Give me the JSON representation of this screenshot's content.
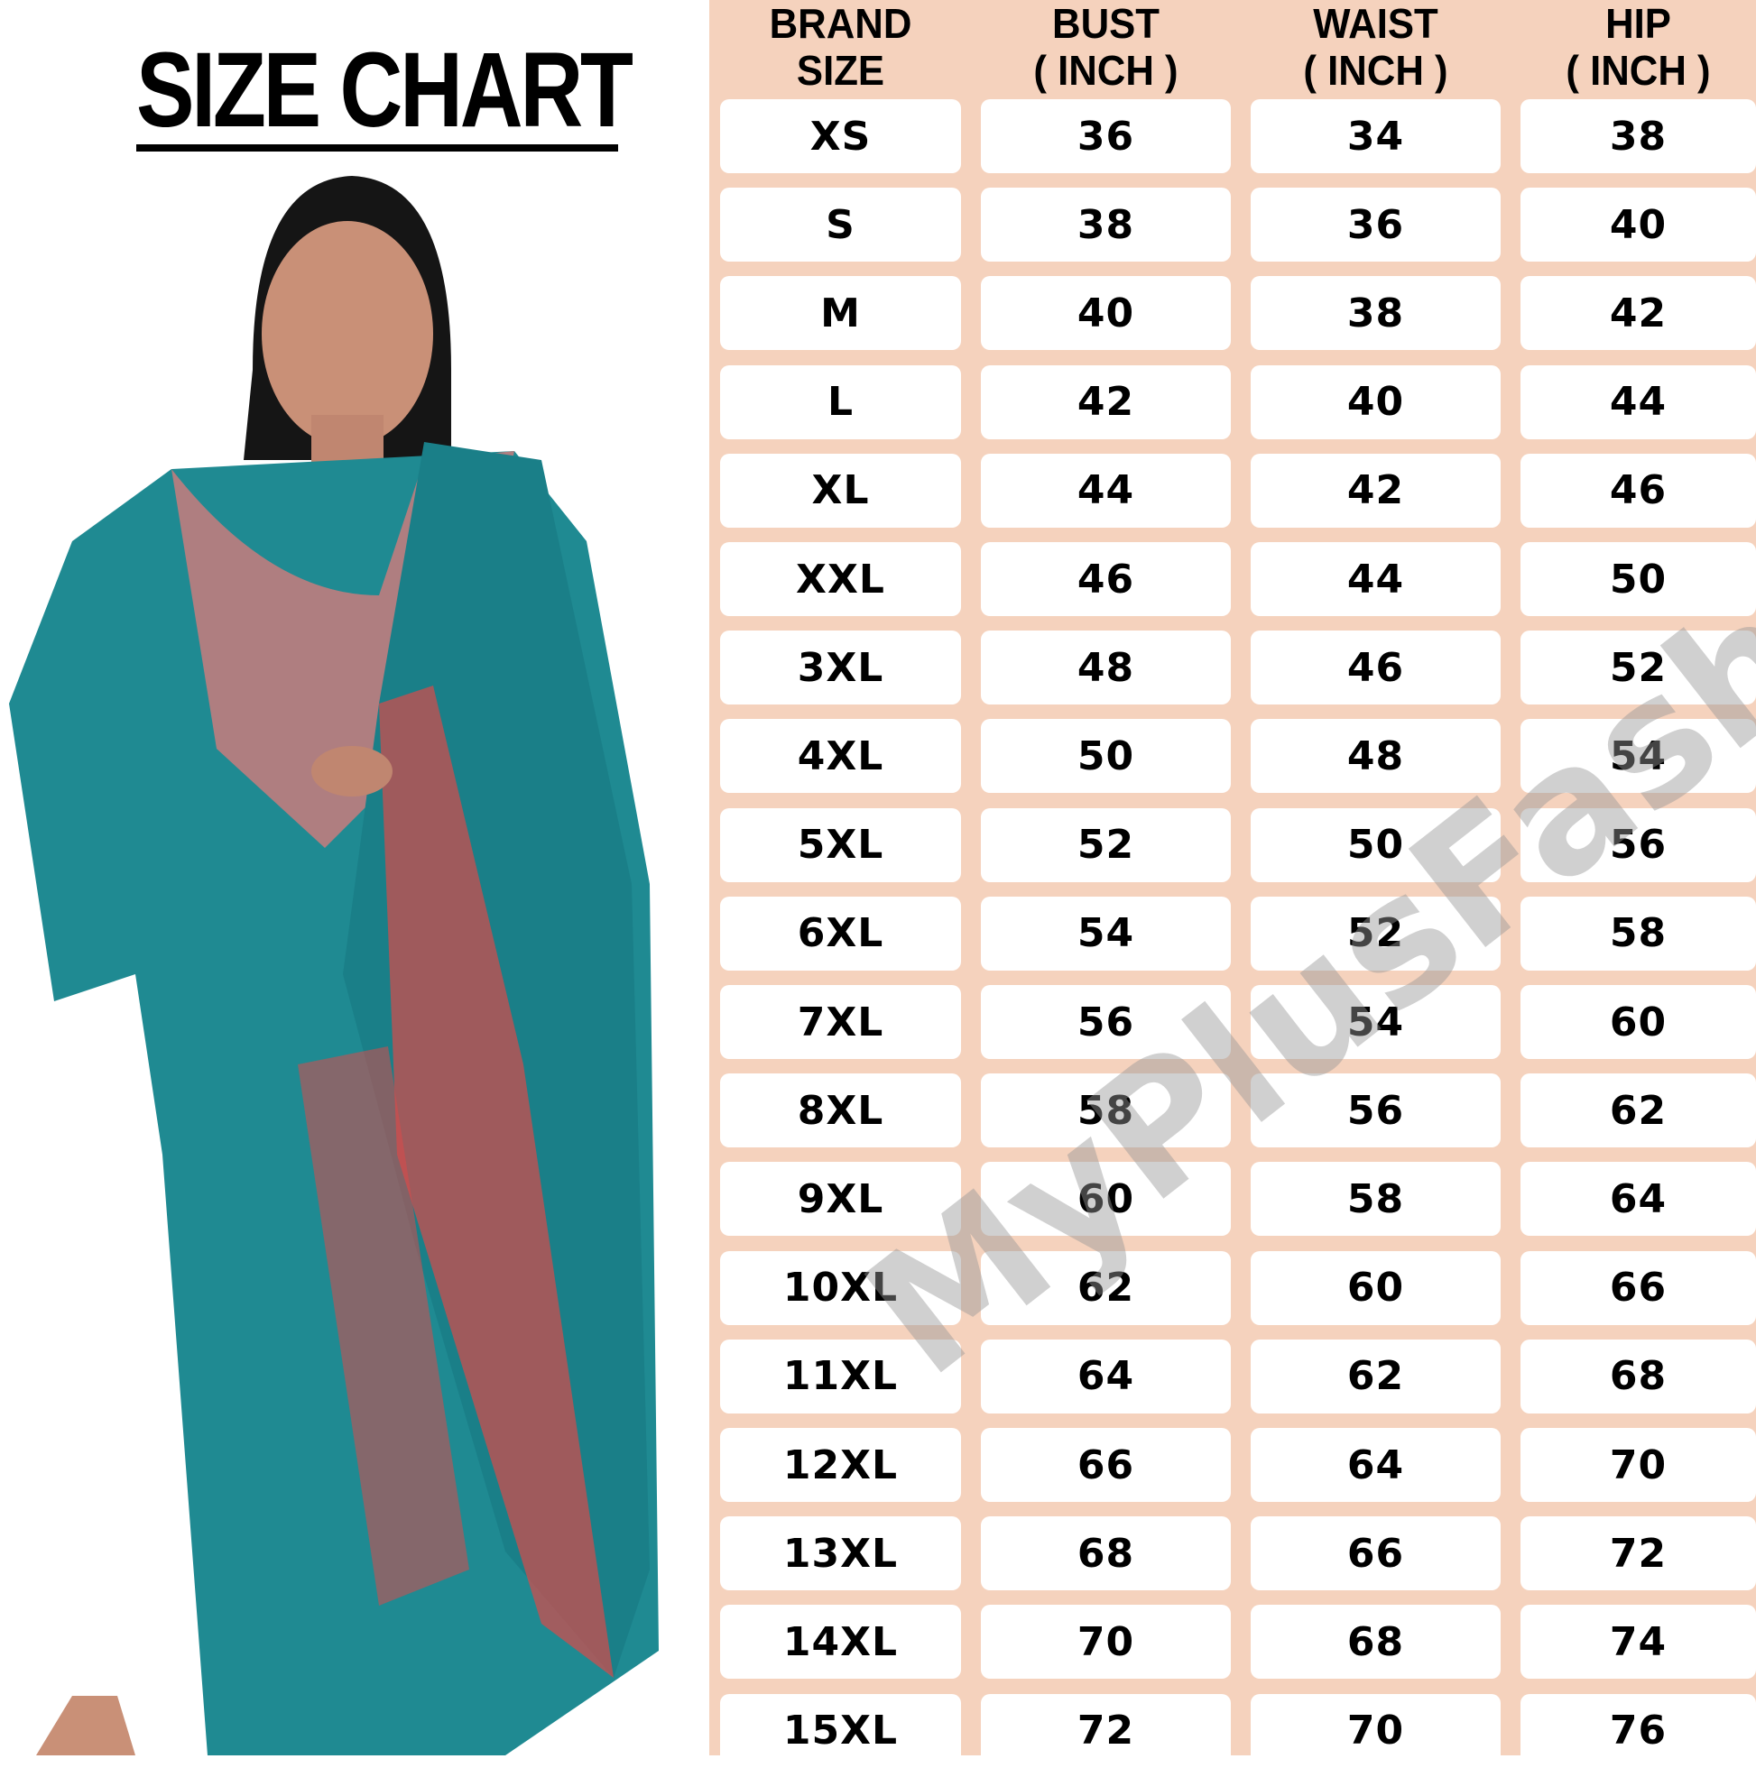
{
  "title": "SIZE CHART",
  "watermark": "MyPlusFashion",
  "colors": {
    "panel_bg": "#f5d2bd",
    "cell_bg": "#ffffff",
    "garment": "#1f8a92",
    "embroidery": "#d94a4a"
  },
  "headers": [
    {
      "line1": "BRAND",
      "line2": "SIZE"
    },
    {
      "line1": "BUST",
      "line2": "( INCH )"
    },
    {
      "line1": "WAIST",
      "line2": "( INCH )"
    },
    {
      "line1": "HIP",
      "line2": "( INCH )"
    }
  ],
  "rows": [
    [
      "XS",
      "36",
      "34",
      "38"
    ],
    [
      "S",
      "38",
      "36",
      "40"
    ],
    [
      "M",
      "40",
      "38",
      "42"
    ],
    [
      "L",
      "42",
      "40",
      "44"
    ],
    [
      "XL",
      "44",
      "42",
      "46"
    ],
    [
      "XXL",
      "46",
      "44",
      "50"
    ],
    [
      "3XL",
      "48",
      "46",
      "52"
    ],
    [
      "4XL",
      "50",
      "48",
      "54"
    ],
    [
      "5XL",
      "52",
      "50",
      "56"
    ],
    [
      "6XL",
      "54",
      "52",
      "58"
    ],
    [
      "7XL",
      "56",
      "54",
      "60"
    ],
    [
      "8XL",
      "58",
      "56",
      "62"
    ],
    [
      "9XL",
      "60",
      "58",
      "64"
    ],
    [
      "10XL",
      "62",
      "60",
      "66"
    ],
    [
      "11XL",
      "64",
      "62",
      "68"
    ],
    [
      "12XL",
      "66",
      "64",
      "70"
    ],
    [
      "13XL",
      "68",
      "66",
      "72"
    ],
    [
      "14XL",
      "70",
      "68",
      "74"
    ],
    [
      "15XL",
      "72",
      "70",
      "76"
    ]
  ]
}
